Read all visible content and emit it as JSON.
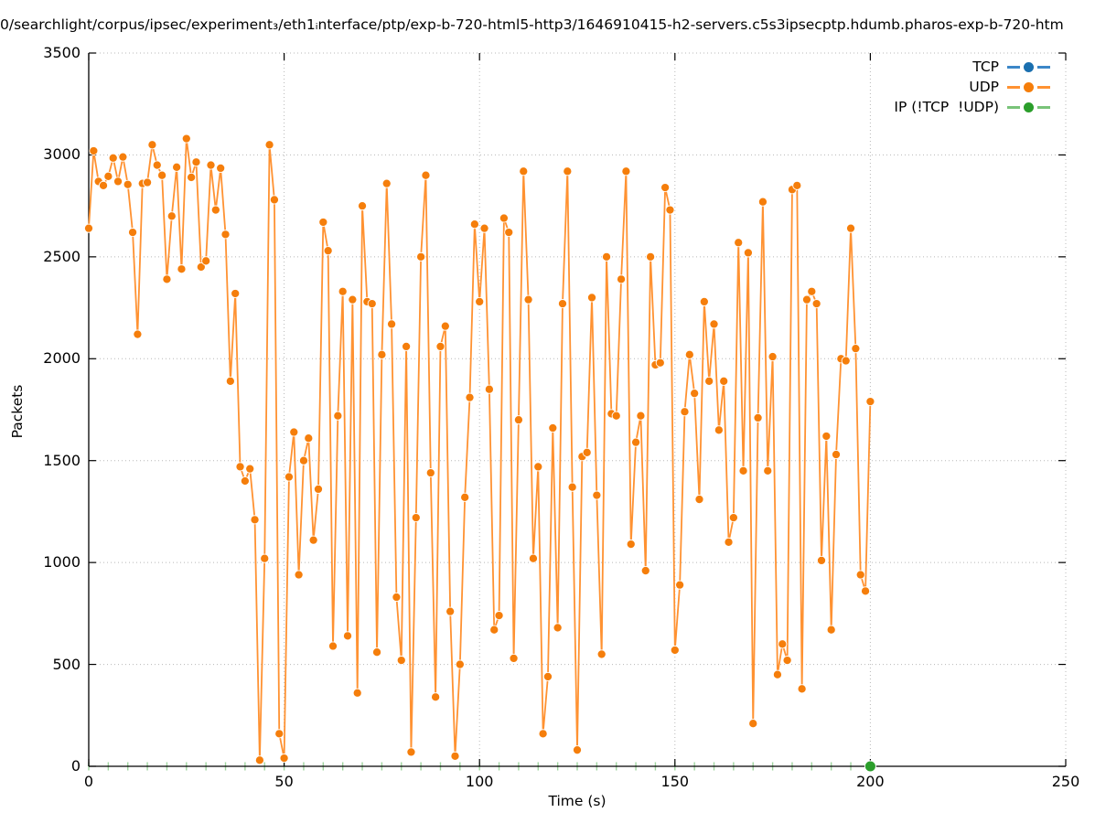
{
  "chart_data": {
    "type": "line",
    "title": "0/searchlight/corpus/ipsec/experiment₃/eth1ᵢnterface/ptp/exp-b-720-html5-http3/1646910415-h2-servers.c5s3ipsecptp.hdumb.pharos-exp-b-720-htm",
    "xlabel": "Time (s)",
    "ylabel": "Packets",
    "xlim": [
      0,
      250
    ],
    "ylim": [
      0,
      3500
    ],
    "xticks": [
      0,
      50,
      100,
      150,
      200,
      250
    ],
    "yticks": [
      0,
      500,
      1000,
      1500,
      2000,
      2500,
      3000,
      3500
    ],
    "grid": true,
    "grid_color": "#b8b8b8",
    "legend_position": "top-right",
    "x_minor_marks": {
      "color": "#9ed49e",
      "start": 0,
      "end": 200,
      "step": 5
    },
    "series": [
      {
        "name": "TCP",
        "line_color": "#3c87c8",
        "marker_color": "#1a6faf",
        "points": []
      },
      {
        "name": "UDP",
        "line_color": "#ff9232",
        "marker_color": "#f57e0b",
        "points": [
          [
            0,
            2640
          ],
          [
            1.25,
            3020
          ],
          [
            2.5,
            2870
          ],
          [
            3.75,
            2850
          ],
          [
            5,
            2895
          ],
          [
            6.25,
            2985
          ],
          [
            7.5,
            2870
          ],
          [
            8.75,
            2990
          ],
          [
            10,
            2855
          ],
          [
            11.25,
            2620
          ],
          [
            12.5,
            2120
          ],
          [
            13.75,
            2860
          ],
          [
            15,
            2865
          ],
          [
            16.25,
            3050
          ],
          [
            17.5,
            2950
          ],
          [
            18.75,
            2900
          ],
          [
            20,
            2390
          ],
          [
            21.25,
            2700
          ],
          [
            22.5,
            2940
          ],
          [
            23.75,
            2440
          ],
          [
            25,
            3080
          ],
          [
            26.25,
            2890
          ],
          [
            27.5,
            2965
          ],
          [
            28.75,
            2450
          ],
          [
            30,
            2480
          ],
          [
            31.25,
            2950
          ],
          [
            32.5,
            2730
          ],
          [
            33.75,
            2935
          ],
          [
            35,
            2610
          ],
          [
            36.25,
            1890
          ],
          [
            37.5,
            2320
          ],
          [
            38.75,
            1470
          ],
          [
            40,
            1400
          ],
          [
            41.25,
            1460
          ],
          [
            42.5,
            1210
          ],
          [
            43.75,
            30
          ],
          [
            45,
            1020
          ],
          [
            46.25,
            3050
          ],
          [
            47.5,
            2780
          ],
          [
            48.75,
            160
          ],
          [
            50,
            40
          ],
          [
            51.25,
            1420
          ],
          [
            52.5,
            1640
          ],
          [
            53.75,
            940
          ],
          [
            55,
            1500
          ],
          [
            56.25,
            1610
          ],
          [
            57.5,
            1110
          ],
          [
            58.75,
            1360
          ],
          [
            60,
            2670
          ],
          [
            61.25,
            2530
          ],
          [
            62.5,
            590
          ],
          [
            63.75,
            1720
          ],
          [
            65,
            2330
          ],
          [
            66.25,
            640
          ],
          [
            67.5,
            2290
          ],
          [
            68.75,
            360
          ],
          [
            70,
            2750
          ],
          [
            71.25,
            2280
          ],
          [
            72.5,
            2270
          ],
          [
            73.75,
            560
          ],
          [
            75,
            2020
          ],
          [
            76.25,
            2860
          ],
          [
            77.5,
            2170
          ],
          [
            78.75,
            830
          ],
          [
            80,
            520
          ],
          [
            81.25,
            2060
          ],
          [
            82.5,
            70
          ],
          [
            83.75,
            1220
          ],
          [
            85,
            2500
          ],
          [
            86.25,
            2900
          ],
          [
            87.5,
            1440
          ],
          [
            88.75,
            340
          ],
          [
            90,
            2060
          ],
          [
            91.25,
            2160
          ],
          [
            92.5,
            760
          ],
          [
            93.75,
            50
          ],
          [
            95,
            500
          ],
          [
            96.25,
            1320
          ],
          [
            97.5,
            1810
          ],
          [
            98.75,
            2660
          ],
          [
            100,
            2280
          ],
          [
            101.25,
            2640
          ],
          [
            102.5,
            1850
          ],
          [
            103.75,
            670
          ],
          [
            105,
            740
          ],
          [
            106.25,
            2690
          ],
          [
            107.5,
            2620
          ],
          [
            108.75,
            530
          ],
          [
            110,
            1700
          ],
          [
            111.25,
            2920
          ],
          [
            112.5,
            2290
          ],
          [
            113.75,
            1020
          ],
          [
            115,
            1470
          ],
          [
            116.25,
            160
          ],
          [
            117.5,
            440
          ],
          [
            118.75,
            1660
          ],
          [
            120,
            680
          ],
          [
            121.25,
            2270
          ],
          [
            122.5,
            2920
          ],
          [
            123.75,
            1370
          ],
          [
            125,
            80
          ],
          [
            126.25,
            1520
          ],
          [
            127.5,
            1540
          ],
          [
            128.75,
            2300
          ],
          [
            130,
            1330
          ],
          [
            131.25,
            550
          ],
          [
            132.5,
            2500
          ],
          [
            133.75,
            1730
          ],
          [
            135,
            1720
          ],
          [
            136.25,
            2390
          ],
          [
            137.5,
            2920
          ],
          [
            138.75,
            1090
          ],
          [
            140,
            1590
          ],
          [
            141.25,
            1720
          ],
          [
            142.5,
            960
          ],
          [
            143.75,
            2500
          ],
          [
            145,
            1970
          ],
          [
            146.25,
            1980
          ],
          [
            147.5,
            2840
          ],
          [
            148.75,
            2730
          ],
          [
            150,
            570
          ],
          [
            151.25,
            890
          ],
          [
            152.5,
            1740
          ],
          [
            153.75,
            2020
          ],
          [
            155,
            1830
          ],
          [
            156.25,
            1310
          ],
          [
            157.5,
            2280
          ],
          [
            158.75,
            1890
          ],
          [
            160,
            2170
          ],
          [
            161.25,
            1650
          ],
          [
            162.5,
            1890
          ],
          [
            163.75,
            1100
          ],
          [
            165,
            1220
          ],
          [
            166.25,
            2570
          ],
          [
            167.5,
            1450
          ],
          [
            168.75,
            2520
          ],
          [
            170,
            210
          ],
          [
            171.25,
            1710
          ],
          [
            172.5,
            2770
          ],
          [
            173.75,
            1450
          ],
          [
            175,
            2010
          ],
          [
            176.25,
            450
          ],
          [
            177.5,
            600
          ],
          [
            178.75,
            520
          ],
          [
            180,
            2830
          ],
          [
            181.25,
            2850
          ],
          [
            182.5,
            380
          ],
          [
            183.75,
            2290
          ],
          [
            185,
            2330
          ],
          [
            186.25,
            2270
          ],
          [
            187.5,
            1010
          ],
          [
            188.75,
            1620
          ],
          [
            190,
            670
          ],
          [
            191.25,
            1530
          ],
          [
            192.5,
            2000
          ],
          [
            193.75,
            1990
          ],
          [
            195,
            2640
          ],
          [
            196.25,
            2050
          ],
          [
            197.5,
            940
          ],
          [
            198.75,
            860
          ],
          [
            200,
            1790
          ]
        ]
      },
      {
        "name": "IP (!TCP  !UDP)",
        "line_color": "#79c379",
        "marker_color": "#2b9e2b",
        "points": [
          [
            200,
            0
          ]
        ]
      }
    ]
  }
}
